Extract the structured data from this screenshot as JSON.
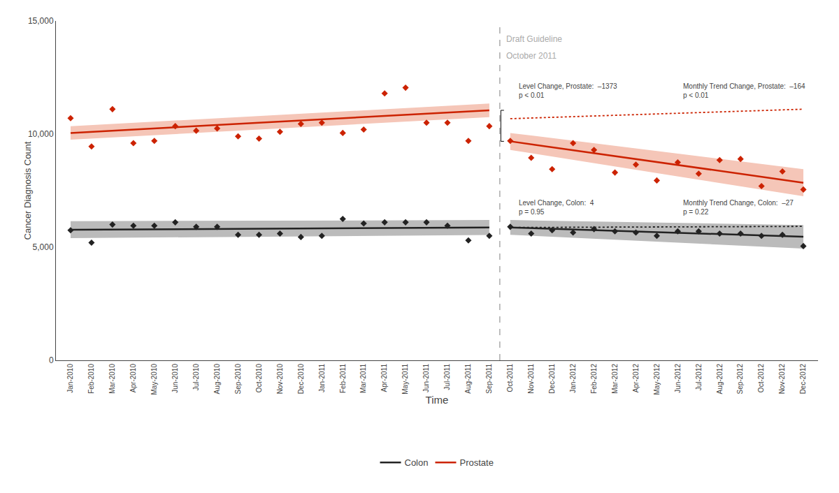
{
  "chart_data": {
    "type": "line",
    "xlabel": "Time",
    "ylabel": "Cancer Diagnosis Count",
    "categories": [
      "Jan-2010",
      "Feb-2010",
      "Mar-2010",
      "Apr-2010",
      "May-2010",
      "Jun-2010",
      "Jul-2010",
      "Aug-2010",
      "Sep-2010",
      "Oct-2010",
      "Nov-2010",
      "Dec-2010",
      "Jan-2011",
      "Feb-2011",
      "Mar-2011",
      "Apr-2011",
      "May-2011",
      "Jun-2011",
      "Jul-2011",
      "Aug-2011",
      "Sep-2011",
      "Oct-2011",
      "Nov-2011",
      "Dec-2011",
      "Jan-2012",
      "Feb-2012",
      "Mar-2012",
      "Apr-2012",
      "May-2012",
      "Jun-2012",
      "Jul-2012",
      "Aug-2012",
      "Sep-2012",
      "Oct-2012",
      "Nov-2012",
      "Dec-2012"
    ],
    "ylim": [
      0,
      15000
    ],
    "yticks": [
      0,
      {
        "value": 5000,
        "label": "5,000"
      },
      {
        "value": 10000,
        "label": "10,000"
      },
      {
        "value": 15000,
        "label": "15,000"
      }
    ],
    "grid": false,
    "legend": "bottom",
    "background_color": "#ffffff",
    "event": {
      "at": "Oct-2011",
      "color": "#b0b0b0",
      "line_style": "dashed",
      "labels": [
        "Draft Guideline",
        "October 2011"
      ],
      "label_color": "#aaaaaa"
    },
    "series": [
      {
        "name": "Prostate",
        "color": "#cc2200",
        "band_color": "#f5c6b8",
        "marker": "diamond",
        "bracket": true,
        "values": [
          10700,
          9450,
          11100,
          9600,
          9700,
          10350,
          10150,
          10250,
          9900,
          9800,
          10100,
          10450,
          10500,
          10050,
          10200,
          11800,
          12050,
          10500,
          10500,
          9700,
          10350,
          9700,
          8950,
          8450,
          9600,
          9300,
          8300,
          8650,
          7950,
          8750,
          8250,
          8850,
          8900,
          7700,
          8350,
          7550
        ],
        "segments": [
          {
            "line_style": "solid",
            "x": [
              "Jan-2010",
              "Sep-2011"
            ],
            "values": [
              10050,
              11050
            ]
          },
          {
            "line_style": "solid",
            "x": [
              "Oct-2011",
              "Dec-2012"
            ],
            "values": [
              9680,
              7850
            ]
          },
          {
            "line_style": "dotted",
            "x": [
              "Oct-2011",
              "Dec-2012"
            ],
            "values": [
              10680,
              11100
            ]
          }
        ],
        "bands": [
          {
            "x": [
              "Jan-2010",
              "Sep-2011"
            ],
            "upper": [
              10350,
              11350
            ],
            "lower": [
              9750,
              10750
            ]
          },
          {
            "x": [
              "Oct-2011",
              "Dec-2012"
            ],
            "upper": [
              10050,
              8450
            ],
            "lower": [
              9300,
              7250
            ]
          }
        ],
        "notes": [
          "Level Change, Prostate:  –1373\np < 0.01",
          "Monthly Trend Change, Prostate:  –164\np < 0.01"
        ]
      },
      {
        "name": "Colon",
        "color": "#222222",
        "band_color": "#bbbbbb",
        "marker": "diamond",
        "bracket": false,
        "values": [
          5750,
          5200,
          6000,
          5950,
          5950,
          6100,
          5900,
          5900,
          5550,
          5550,
          5600,
          5450,
          5500,
          6250,
          6050,
          6100,
          6100,
          6100,
          5950,
          5300,
          5500,
          5900,
          5600,
          5750,
          5650,
          5800,
          5700,
          5650,
          5500,
          5700,
          5700,
          5600,
          5600,
          5500,
          5550,
          5050
        ],
        "segments": [
          {
            "line_style": "solid",
            "x": [
              "Jan-2010",
              "Sep-2011"
            ],
            "values": [
              5770,
              5870
            ]
          },
          {
            "line_style": "solid",
            "x": [
              "Oct-2011",
              "Dec-2012"
            ],
            "values": [
              5875,
              5460
            ]
          },
          {
            "line_style": "dotted",
            "x": [
              "Oct-2011",
              "Dec-2012"
            ],
            "values": [
              5870,
              5920
            ]
          }
        ],
        "bands": [
          {
            "x": [
              "Jan-2010",
              "Sep-2011"
            ],
            "upper": [
              6150,
              6200
            ],
            "lower": [
              5400,
              5540
            ]
          },
          {
            "x": [
              "Oct-2011",
              "Dec-2012"
            ],
            "upper": [
              6200,
              5980
            ],
            "lower": [
              5550,
              4940
            ]
          }
        ],
        "notes": [
          "Level Change, Colon:  4\np = 0.95",
          "Monthly Trend Change, Colon:  –27\np = 0.22"
        ]
      }
    ]
  }
}
